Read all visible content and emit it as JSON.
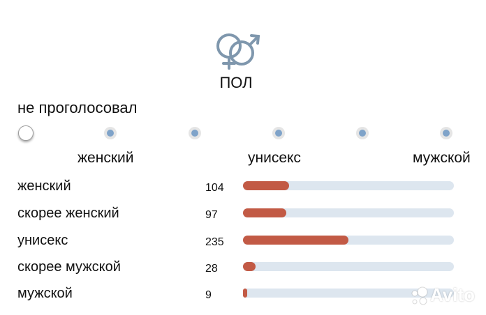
{
  "header": {
    "icon": "male-female-gender-icon",
    "icon_color": "#7f97ad",
    "title": "ПОЛ"
  },
  "poll": {
    "not_voted_label": "не проголосовал",
    "scale_options": 6,
    "scale_labels": {
      "left": "женский",
      "middle": "унисекс",
      "right": "мужской"
    },
    "results": [
      {
        "label": "женский",
        "count": "104",
        "fraction": 0.22
      },
      {
        "label": "скорее женский",
        "count": "97",
        "fraction": 0.205
      },
      {
        "label": "унисекс",
        "count": "235",
        "fraction": 0.5
      },
      {
        "label": "скорее мужской",
        "count": "28",
        "fraction": 0.06
      },
      {
        "label": "мужской",
        "count": "9",
        "fraction": 0.02
      }
    ],
    "bar_color": "#c25a45",
    "track_color": "#dde6ef",
    "radio_dot_color": "#7fa3c9"
  },
  "watermark": {
    "text": "Avito",
    "icon": "avito-logo-icon"
  }
}
